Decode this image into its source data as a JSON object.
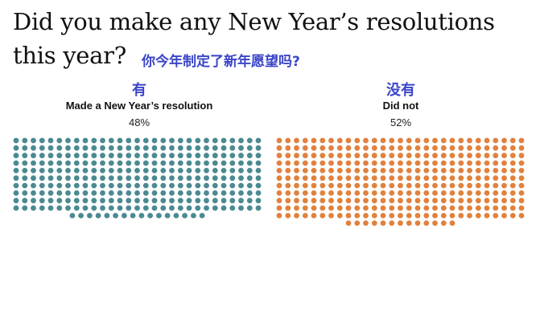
{
  "title": "Did you make any New Year’s resolutions this year?",
  "subtitle_cn": "你今年制定了新年愿望吗?",
  "chart_data": {
    "type": "waffle",
    "series": [
      {
        "name": "Made a New Year’s resolution",
        "name_cn": "有",
        "value": 48,
        "label": "48%",
        "color": "#4b8a91"
      },
      {
        "name": "Did not",
        "name_cn": "没有",
        "value": 52,
        "label": "52%",
        "color": "#e0823f"
      }
    ]
  }
}
